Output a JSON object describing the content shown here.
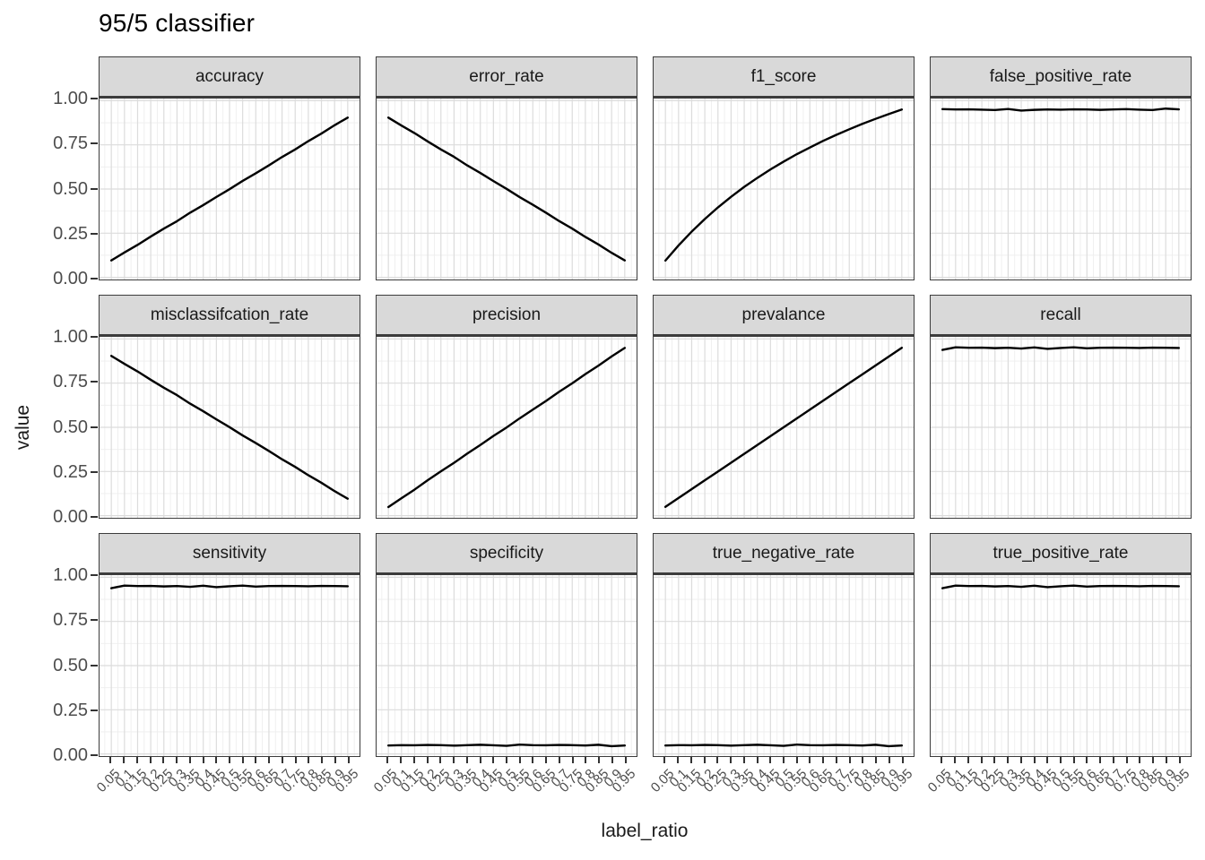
{
  "title": "95/5 classifier",
  "xlabel": "label_ratio",
  "ylabel": "value",
  "y_ticks": [
    "1.00",
    "0.75",
    "0.50",
    "0.25",
    "0.00"
  ],
  "x_tick_labels": [
    "0.05",
    "0.1",
    "0.15",
    "0.2",
    "0.25",
    "0.3",
    "0.35",
    "0.4",
    "0.45",
    "0.5",
    "0.55",
    "0.6",
    "0.65",
    "0.7",
    "0.75",
    "0.8",
    "0.85",
    "0.9",
    "0.95"
  ],
  "colors": {
    "line": "#000000",
    "strip_fill": "#d9d9d9",
    "panel_border": "#3c3c3c",
    "grid_major": "#dcdcdc",
    "grid_minor": "#eeeeee",
    "tick_mark": "#333333",
    "tick_label": "#4d4d4d",
    "strip_text": "#1a1a1a",
    "title_text": "#000000",
    "axis_title_text": "#1a1a1a"
  },
  "chart_data": {
    "type": "line",
    "title": "95/5 classifier",
    "xlabel": "label_ratio",
    "ylabel": "value",
    "ylim": [
      0,
      1
    ],
    "xlim": [
      0.05,
      0.95
    ],
    "grid": "major and minor gridlines, light gray on white panels",
    "legend": "none",
    "facet_layout": "12 facets in 3 rows x 4 columns, shared axes",
    "x": [
      0.05,
      0.1,
      0.15,
      0.2,
      0.25,
      0.3,
      0.35,
      0.4,
      0.45,
      0.5,
      0.55,
      0.6,
      0.65,
      0.7,
      0.75,
      0.8,
      0.85,
      0.9,
      0.95
    ],
    "series": [
      {
        "name": "accuracy",
        "values": [
          0.096,
          0.141,
          0.184,
          0.231,
          0.276,
          0.318,
          0.366,
          0.409,
          0.455,
          0.499,
          0.546,
          0.589,
          0.634,
          0.681,
          0.724,
          0.771,
          0.814,
          0.861,
          0.904
        ]
      },
      {
        "name": "error_rate",
        "values": [
          0.904,
          0.859,
          0.816,
          0.769,
          0.724,
          0.682,
          0.634,
          0.591,
          0.545,
          0.501,
          0.454,
          0.411,
          0.366,
          0.319,
          0.276,
          0.229,
          0.186,
          0.139,
          0.096
        ]
      },
      {
        "name": "f1_score",
        "values": [
          0.095,
          0.181,
          0.259,
          0.33,
          0.396,
          0.456,
          0.512,
          0.563,
          0.611,
          0.655,
          0.697,
          0.735,
          0.772,
          0.806,
          0.838,
          0.869,
          0.897,
          0.924,
          0.95
        ]
      },
      {
        "name": "false_positive_rate",
        "values": [
          0.952,
          0.95,
          0.951,
          0.949,
          0.947,
          0.953,
          0.944,
          0.948,
          0.95,
          0.949,
          0.951,
          0.95,
          0.948,
          0.95,
          0.952,
          0.949,
          0.947,
          0.955,
          0.951
        ]
      },
      {
        "name": "misclassifcation_rate",
        "values": [
          0.904,
          0.859,
          0.816,
          0.769,
          0.724,
          0.682,
          0.634,
          0.591,
          0.545,
          0.501,
          0.454,
          0.411,
          0.366,
          0.319,
          0.276,
          0.229,
          0.186,
          0.139,
          0.096
        ]
      },
      {
        "name": "precision",
        "values": [
          0.049,
          0.099,
          0.148,
          0.201,
          0.251,
          0.299,
          0.351,
          0.4,
          0.451,
          0.499,
          0.551,
          0.6,
          0.649,
          0.701,
          0.749,
          0.801,
          0.849,
          0.901,
          0.949
        ]
      },
      {
        "name": "prevalance",
        "values": [
          0.05,
          0.1,
          0.15,
          0.2,
          0.25,
          0.3,
          0.35,
          0.4,
          0.45,
          0.5,
          0.55,
          0.6,
          0.65,
          0.7,
          0.75,
          0.8,
          0.85,
          0.9,
          0.95
        ]
      },
      {
        "name": "recall",
        "values": [
          0.938,
          0.953,
          0.95,
          0.951,
          0.948,
          0.95,
          0.946,
          0.952,
          0.944,
          0.949,
          0.953,
          0.947,
          0.95,
          0.951,
          0.95,
          0.949,
          0.951,
          0.95,
          0.949
        ]
      },
      {
        "name": "sensitivity",
        "values": [
          0.938,
          0.953,
          0.95,
          0.951,
          0.948,
          0.95,
          0.946,
          0.952,
          0.944,
          0.949,
          0.953,
          0.947,
          0.95,
          0.951,
          0.95,
          0.949,
          0.951,
          0.95,
          0.949
        ]
      },
      {
        "name": "specificity",
        "values": [
          0.048,
          0.05,
          0.049,
          0.051,
          0.05,
          0.047,
          0.05,
          0.052,
          0.049,
          0.046,
          0.053,
          0.05,
          0.049,
          0.051,
          0.05,
          0.048,
          0.052,
          0.044,
          0.048
        ]
      },
      {
        "name": "true_negative_rate",
        "values": [
          0.048,
          0.05,
          0.049,
          0.051,
          0.05,
          0.047,
          0.05,
          0.052,
          0.049,
          0.046,
          0.053,
          0.05,
          0.049,
          0.051,
          0.05,
          0.048,
          0.052,
          0.044,
          0.048
        ]
      },
      {
        "name": "true_positive_rate",
        "values": [
          0.938,
          0.953,
          0.95,
          0.951,
          0.948,
          0.95,
          0.946,
          0.952,
          0.944,
          0.949,
          0.953,
          0.947,
          0.95,
          0.951,
          0.95,
          0.949,
          0.951,
          0.95,
          0.949
        ]
      }
    ]
  }
}
